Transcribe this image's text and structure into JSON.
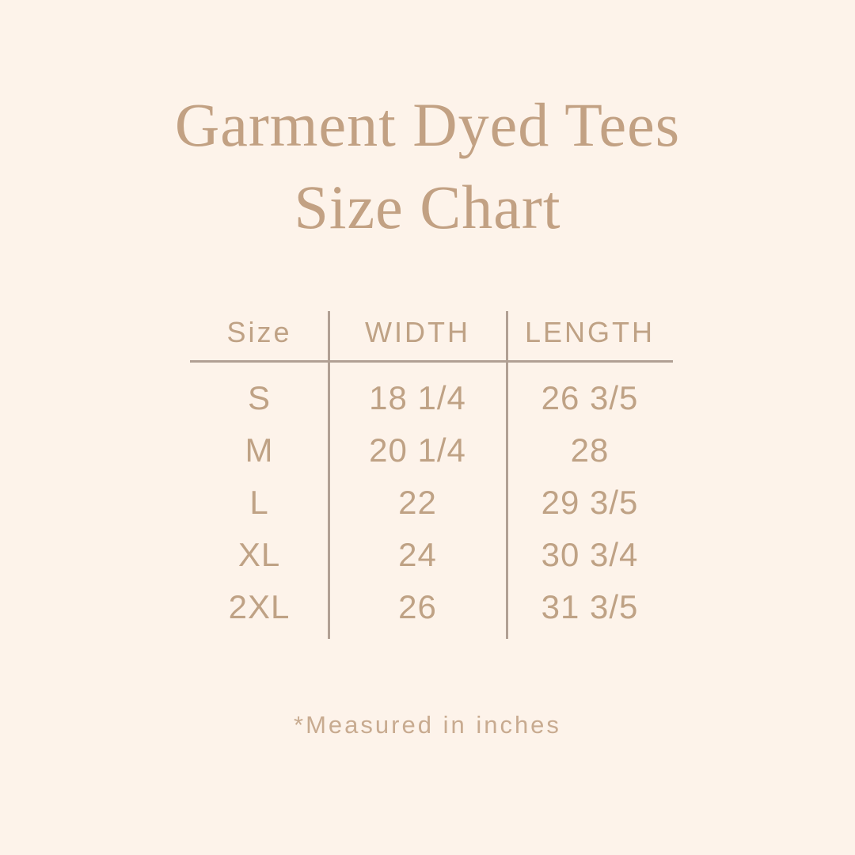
{
  "header": {
    "title_line1": "Garment Dyed Tees",
    "title_line2": "Size Chart"
  },
  "footer": {
    "note": "*Measured in inches"
  },
  "colors": {
    "background": "#fdf3ea",
    "title": "#c2a183",
    "table_text": "#bfa285",
    "divider": "#b1a094",
    "note": "#c8ab90"
  },
  "chart_data": {
    "type": "table",
    "title": "Garment Dyed Tees Size Chart",
    "columns": [
      "Size",
      "WIDTH",
      "LENGTH"
    ],
    "rows": [
      [
        "S",
        "18 1/4",
        "26 3/5"
      ],
      [
        "M",
        "20 1/4",
        "28"
      ],
      [
        "L",
        "22",
        "29 3/5"
      ],
      [
        "XL",
        "24",
        "30 3/4"
      ],
      [
        "2XL",
        "26",
        "31 3/5"
      ]
    ],
    "units": "inches",
    "note": "*Measured in inches"
  }
}
